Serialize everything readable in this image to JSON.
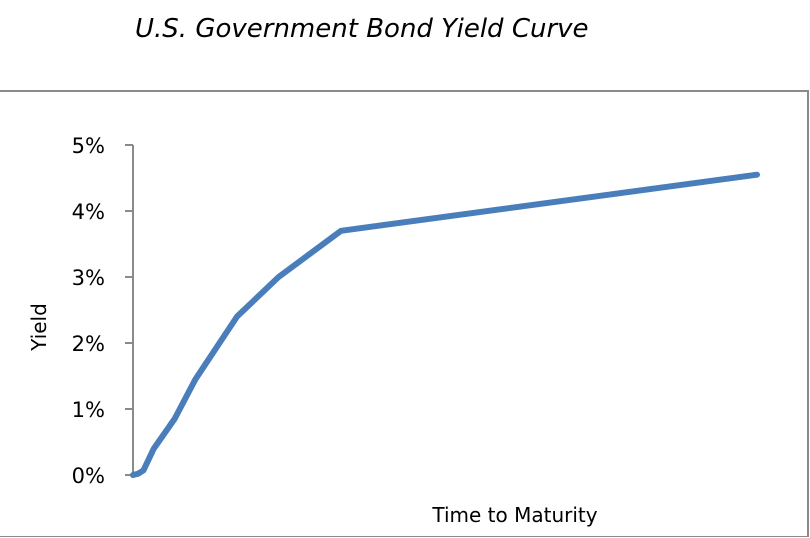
{
  "chart_data": {
    "type": "line",
    "title": "U.S. Government Bond Yield Curve",
    "xlabel": "Time to Maturity",
    "ylabel": "Yield",
    "yticks": [
      "0%",
      "1%",
      "2%",
      "3%",
      "4%",
      "5%"
    ],
    "ylim": [
      0,
      5
    ],
    "xlim": [
      0,
      30
    ],
    "grid": false,
    "series_color": "#4a7ebb",
    "x": [
      0,
      0.25,
      0.5,
      1,
      2,
      3,
      5,
      7,
      10,
      30
    ],
    "y": [
      0.0,
      0.02,
      0.07,
      0.4,
      0.85,
      1.45,
      2.4,
      3.0,
      3.7,
      4.55
    ]
  }
}
